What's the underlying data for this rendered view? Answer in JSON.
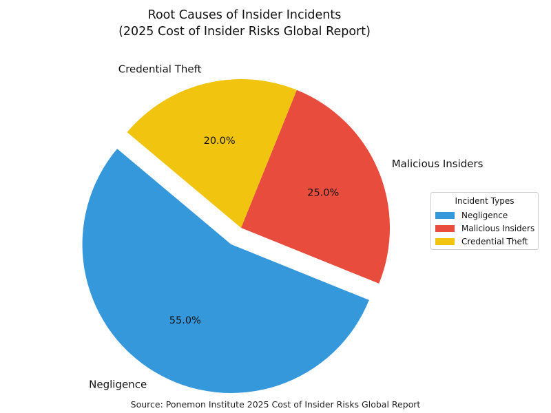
{
  "chart_data": {
    "type": "pie",
    "title": [
      "Root Causes of Insider Incidents",
      "(2025 Cost of Insider Risks Global Report)"
    ],
    "categories": [
      "Negligence",
      "Malicious Insiders",
      "Credential Theft"
    ],
    "values": [
      55.0,
      25.0,
      20.0
    ],
    "value_labels": [
      "55.0%",
      "25.0%",
      "20.0%"
    ],
    "colors": [
      "#3498db",
      "#e74c3c",
      "#f1c40f"
    ],
    "exploded": [
      true,
      false,
      false
    ],
    "legend": {
      "title": "Incident Types",
      "placement": "right",
      "entries": [
        "Negligence",
        "Malicious Insiders",
        "Credential Theft"
      ]
    },
    "source": "Source: Ponemon Institute 2025 Cost of Insider Risks Global Report"
  }
}
